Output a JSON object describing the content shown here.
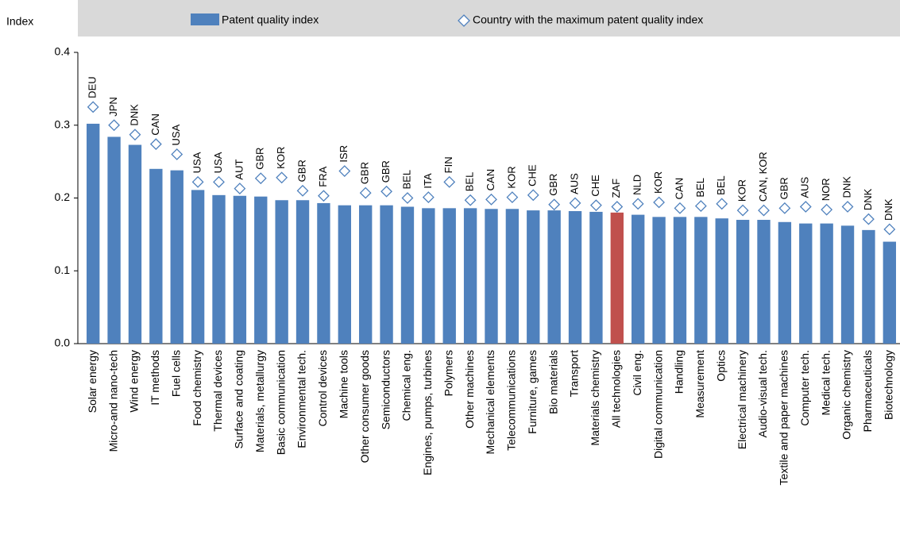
{
  "chart_data": {
    "type": "bar",
    "y_label": "Index",
    "categories": [
      "Solar energy",
      "Micro-and nano-tech",
      "Wind energy",
      "IT methods",
      "Fuel cells",
      "Food chemistry",
      "Thermal devices",
      "Surface and coating",
      "Materials, metallurgy",
      "Basic communication",
      "Environmental tech.",
      "Control devices",
      "Machine tools",
      "Other consumer goods",
      "Semiconductors",
      "Chemical eng.",
      "Engines, pumps, turbines",
      "Polymers",
      "Other machines",
      "Mechanical elements",
      "Telecommunications",
      "Furniture, games",
      "Bio materials",
      "Transport",
      "Materials chemistry",
      "All technologies",
      "Civil eng.",
      "Digital communication",
      "Handling",
      "Measurement",
      "Optics",
      "Electrical machinery",
      "Audio-visual tech.",
      "Textile and paper machines",
      "Computer tech.",
      "Medical tech.",
      "Organic chemistry",
      "Pharmaceuticals",
      "Biotechnology"
    ],
    "series": [
      {
        "name": "Patent quality index",
        "colors": [
          "#4f81bd",
          "#4f81bd",
          "#4f81bd",
          "#4f81bd",
          "#4f81bd",
          "#4f81bd",
          "#4f81bd",
          "#4f81bd",
          "#4f81bd",
          "#4f81bd",
          "#4f81bd",
          "#4f81bd",
          "#4f81bd",
          "#4f81bd",
          "#4f81bd",
          "#4f81bd",
          "#4f81bd",
          "#4f81bd",
          "#4f81bd",
          "#4f81bd",
          "#4f81bd",
          "#4f81bd",
          "#4f81bd",
          "#4f81bd",
          "#4f81bd",
          "#c0504d",
          "#4f81bd",
          "#4f81bd",
          "#4f81bd",
          "#4f81bd",
          "#4f81bd",
          "#4f81bd",
          "#4f81bd",
          "#4f81bd",
          "#4f81bd",
          "#4f81bd",
          "#4f81bd",
          "#4f81bd",
          "#4f81bd"
        ],
        "values": [
          0.302,
          0.284,
          0.273,
          0.24,
          0.238,
          0.211,
          0.204,
          0.203,
          0.202,
          0.197,
          0.197,
          0.193,
          0.19,
          0.19,
          0.19,
          0.188,
          0.186,
          0.186,
          0.186,
          0.185,
          0.185,
          0.183,
          0.183,
          0.182,
          0.181,
          0.18,
          0.177,
          0.174,
          0.174,
          0.174,
          0.172,
          0.17,
          0.17,
          0.167,
          0.165,
          0.165,
          0.162,
          0.156,
          0.14
        ]
      },
      {
        "name": "Country with the maximum patent quality index",
        "type": "marker",
        "color": "#4f81bd",
        "values": [
          0.325,
          0.3,
          0.287,
          0.274,
          0.26,
          0.222,
          0.222,
          0.213,
          0.227,
          0.228,
          0.21,
          0.203,
          0.237,
          0.207,
          0.209,
          0.2,
          0.201,
          0.222,
          0.197,
          0.198,
          0.201,
          0.204,
          0.191,
          0.193,
          0.19,
          0.188,
          0.192,
          0.194,
          0.186,
          0.189,
          0.192,
          0.183,
          0.183,
          0.186,
          0.188,
          0.184,
          0.188,
          0.171,
          0.157
        ],
        "labels": [
          "DEU",
          "JPN",
          "DNK",
          "CAN",
          "USA",
          "USA",
          "USA",
          "AUT",
          "GBR",
          "KOR",
          "GBR",
          "FRA",
          "ISR",
          "GBR",
          "GBR",
          "BEL",
          "ITA",
          "FIN",
          "BEL",
          "CAN",
          "KOR",
          "CHE",
          "GBR",
          "AUS",
          "CHE",
          "ZAF",
          "NLD",
          "KOR",
          "CAN",
          "BEL",
          "BEL",
          "KOR",
          "CAN, KOR",
          "GBR",
          "AUS",
          "NOR",
          "DNK",
          "DNK",
          "DNK"
        ]
      }
    ],
    "ylim": [
      0,
      0.4
    ],
    "yticks": [
      {
        "value": 0,
        "label": "0.0"
      },
      0.1,
      0.2,
      0.3,
      0.4
    ],
    "legend": "top"
  }
}
